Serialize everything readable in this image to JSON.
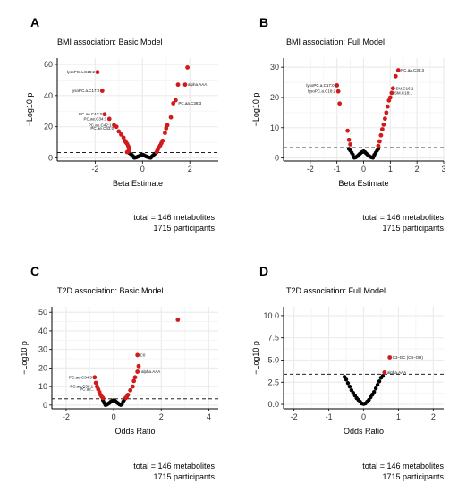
{
  "chart_data": [
    {
      "type": "scatter",
      "panel": "A",
      "title": "BMI association: Basic Model",
      "xlabel": "Beta Estimate",
      "ylabel": "−Log10 p",
      "xlim": [
        -3.6,
        3.2
      ],
      "ylim": [
        -2,
        64
      ],
      "xticks": [
        -2,
        0,
        2
      ],
      "yticks": [
        0,
        20,
        40,
        60
      ],
      "threshold_y": 3.4,
      "grid": true,
      "footnote": [
        "total = 146 metabolites",
        "1715 participants"
      ],
      "points_nonsig": [
        [
          -0.3,
          0.2
        ],
        [
          -0.25,
          0.5
        ],
        [
          -0.2,
          0.8
        ],
        [
          -0.15,
          1.1
        ],
        [
          -0.1,
          1.5
        ],
        [
          -0.05,
          1.9
        ],
        [
          0.0,
          2.1
        ],
        [
          0.05,
          1.8
        ],
        [
          0.1,
          1.4
        ],
        [
          0.15,
          1.0
        ],
        [
          0.2,
          0.7
        ],
        [
          0.25,
          0.4
        ],
        [
          0.3,
          0.2
        ],
        [
          0.35,
          0.1
        ],
        [
          -0.35,
          0.1
        ],
        [
          0.4,
          0.9
        ],
        [
          -0.4,
          1.2
        ],
        [
          0.45,
          1.6
        ],
        [
          -0.45,
          1.9
        ],
        [
          0.5,
          2.4
        ],
        [
          -0.5,
          2.6
        ],
        [
          0.55,
          2.9
        ],
        [
          -0.55,
          3.1
        ]
      ],
      "points_sig": [
        [
          -1.9,
          55
        ],
        [
          -1.7,
          43
        ],
        [
          -1.6,
          28
        ],
        [
          -1.4,
          25
        ],
        [
          -1.2,
          21
        ],
        [
          -1.1,
          20
        ],
        [
          -1.0,
          17
        ],
        [
          -0.9,
          15
        ],
        [
          -0.8,
          13
        ],
        [
          -0.75,
          11
        ],
        [
          -0.7,
          10
        ],
        [
          -0.65,
          9
        ],
        [
          -0.6,
          7.5
        ],
        [
          -0.58,
          6.5
        ],
        [
          -0.56,
          5.5
        ],
        [
          -0.57,
          4.6
        ],
        [
          -0.6,
          4.0
        ],
        [
          -0.65,
          3.7
        ],
        [
          0.6,
          3.7
        ],
        [
          0.62,
          4.5
        ],
        [
          0.65,
          5.5
        ],
        [
          0.7,
          6.8
        ],
        [
          0.75,
          8
        ],
        [
          0.8,
          9.5
        ],
        [
          0.85,
          11
        ],
        [
          0.95,
          16
        ],
        [
          1.0,
          19
        ],
        [
          1.05,
          21
        ],
        [
          1.2,
          26
        ],
        [
          1.3,
          35
        ],
        [
          1.4,
          37
        ],
        [
          1.5,
          47
        ],
        [
          1.8,
          47
        ],
        [
          1.9,
          58
        ]
      ],
      "labels": [
        {
          "x": -1.9,
          "y": 55,
          "text": "lysoPC.a.C18:2"
        },
        {
          "x": -1.7,
          "y": 43,
          "text": "lysoPC.a.C17:0"
        },
        {
          "x": -1.6,
          "y": 28,
          "text": "PC.ae.C42:3"
        },
        {
          "x": -1.4,
          "y": 25,
          "text": "PC.ae.C34:3"
        },
        {
          "x": -1.2,
          "y": 21,
          "text": "PC.ae.C42:1"
        },
        {
          "x": -1.1,
          "y": 19,
          "text": "PC.ae.C42:0"
        },
        {
          "x": 1.8,
          "y": 47,
          "text": "alpha.AAA"
        },
        {
          "x": 1.4,
          "y": 35,
          "text": "PC.aa.C38:3"
        }
      ]
    },
    {
      "type": "scatter",
      "panel": "B",
      "title": "BMI association: Full Model",
      "xlabel": "Beta Estimate",
      "ylabel": "−Log10 p",
      "xlim": [
        -3,
        3
      ],
      "ylim": [
        -1,
        33
      ],
      "xticks": [
        -2,
        -1,
        0,
        1,
        2,
        3
      ],
      "yticks": [
        0,
        10,
        20,
        30
      ],
      "threshold_y": 3.4,
      "grid": true,
      "footnote": [
        "total = 146 metabolites",
        "1715 participants"
      ],
      "points_nonsig": [
        [
          -0.3,
          0.2
        ],
        [
          -0.25,
          0.5
        ],
        [
          -0.2,
          0.9
        ],
        [
          -0.15,
          1.3
        ],
        [
          -0.1,
          1.7
        ],
        [
          -0.05,
          2.0
        ],
        [
          0.0,
          2.2
        ],
        [
          0.05,
          1.9
        ],
        [
          0.1,
          1.5
        ],
        [
          0.15,
          1.1
        ],
        [
          0.2,
          0.7
        ],
        [
          0.25,
          0.4
        ],
        [
          0.3,
          0.2
        ],
        [
          -0.35,
          0.1
        ],
        [
          0.35,
          0.1
        ],
        [
          -0.4,
          1.1
        ],
        [
          0.4,
          1.0
        ],
        [
          -0.45,
          1.8
        ],
        [
          0.45,
          1.7
        ],
        [
          -0.5,
          2.5
        ],
        [
          0.5,
          2.4
        ],
        [
          -0.55,
          3.0
        ],
        [
          0.55,
          3.0
        ]
      ],
      "points_sig": [
        [
          -1.0,
          24
        ],
        [
          -0.95,
          22
        ],
        [
          -0.9,
          18
        ],
        [
          -0.6,
          9
        ],
        [
          -0.55,
          6
        ],
        [
          -0.5,
          4.5
        ],
        [
          0.55,
          4.0
        ],
        [
          0.6,
          5.5
        ],
        [
          0.65,
          7.5
        ],
        [
          0.7,
          9.5
        ],
        [
          0.75,
          11
        ],
        [
          0.8,
          13
        ],
        [
          0.85,
          15
        ],
        [
          0.9,
          17
        ],
        [
          0.95,
          19
        ],
        [
          1.0,
          20
        ],
        [
          1.05,
          21.5
        ],
        [
          1.1,
          23
        ],
        [
          1.2,
          27
        ],
        [
          1.3,
          29
        ]
      ],
      "labels": [
        {
          "x": -1.0,
          "y": 24,
          "text": "lysoPC.a.C17:0"
        },
        {
          "x": -0.95,
          "y": 22,
          "text": "lysoPC.a.C18:2"
        },
        {
          "x": 1.3,
          "y": 29,
          "text": "PC.aa.C38:3"
        },
        {
          "x": 1.1,
          "y": 23,
          "text": "SM.C16:1"
        },
        {
          "x": 1.05,
          "y": 21.5,
          "text": "SM.C18:1"
        }
      ]
    },
    {
      "type": "scatter",
      "panel": "C",
      "title": "T2D association: Basic Model",
      "xlabel": "Odds Ratio",
      "ylabel": "−Log10 p",
      "xlim": [
        -2.6,
        4.4
      ],
      "ylim": [
        -2,
        53
      ],
      "xticks": [
        -2,
        0,
        2,
        4
      ],
      "yticks": [
        0,
        10,
        20,
        30,
        40,
        50
      ],
      "threshold_y": 3.4,
      "grid": true,
      "footnote": [
        "total = 146 metabolites",
        "1715 participants"
      ],
      "points_nonsig": [
        [
          -0.3,
          0.2
        ],
        [
          -0.25,
          0.6
        ],
        [
          -0.2,
          1.0
        ],
        [
          -0.15,
          1.5
        ],
        [
          -0.1,
          2.0
        ],
        [
          -0.05,
          2.4
        ],
        [
          0.0,
          2.6
        ],
        [
          0.05,
          2.3
        ],
        [
          0.1,
          1.8
        ],
        [
          0.15,
          1.3
        ],
        [
          0.2,
          0.8
        ],
        [
          0.25,
          0.4
        ],
        [
          0.3,
          0.1
        ],
        [
          -0.35,
          0.1
        ],
        [
          0.35,
          0.6
        ],
        [
          -0.4,
          1.2
        ],
        [
          0.4,
          1.9
        ],
        [
          -0.45,
          2.6
        ],
        [
          0.45,
          3.0
        ]
      ],
      "points_sig": [
        [
          -0.8,
          15
        ],
        [
          -0.75,
          12
        ],
        [
          -0.7,
          10
        ],
        [
          -0.65,
          8.5
        ],
        [
          -0.6,
          7
        ],
        [
          -0.55,
          5.5
        ],
        [
          -0.5,
          4.5
        ],
        [
          -0.45,
          3.8
        ],
        [
          0.5,
          3.8
        ],
        [
          0.55,
          4.5
        ],
        [
          0.6,
          5.5
        ],
        [
          0.7,
          8
        ],
        [
          0.8,
          10
        ],
        [
          0.85,
          13
        ],
        [
          0.9,
          15
        ],
        [
          1.0,
          18
        ],
        [
          1.05,
          21
        ],
        [
          1.0,
          27
        ],
        [
          2.7,
          46
        ]
      ],
      "labels": [
        {
          "x": 1.0,
          "y": 27,
          "text": "C0"
        },
        {
          "x": 1.05,
          "y": 18,
          "text": "alpha.AAA"
        },
        {
          "x": -0.8,
          "y": 15,
          "text": "PC.ae.C34:3"
        },
        {
          "x": -0.75,
          "y": 10,
          "text": "PC.ae.C30:1"
        },
        {
          "x": -0.7,
          "y": 8.5,
          "text": "PC.ae..."
        }
      ]
    },
    {
      "type": "scatter",
      "panel": "D",
      "title": "T2D association: Full Model",
      "xlabel": "Odds Ratio",
      "ylabel": "−Log10 p",
      "xlim": [
        -2.3,
        2.3
      ],
      "ylim": [
        -0.5,
        11
      ],
      "xticks": [
        -2,
        -1,
        0,
        1,
        2
      ],
      "yticks": [
        0.0,
        2.5,
        5.0,
        7.5,
        10.0
      ],
      "threshold_y": 3.4,
      "grid": true,
      "footnote": [
        "total = 146 metabolites",
        "1715 participants"
      ],
      "points_nonsig": [
        [
          -0.5,
          2.8
        ],
        [
          -0.45,
          2.4
        ],
        [
          -0.4,
          2.0
        ],
        [
          -0.35,
          1.6
        ],
        [
          -0.3,
          1.3
        ],
        [
          -0.25,
          1.0
        ],
        [
          -0.2,
          0.7
        ],
        [
          -0.15,
          0.5
        ],
        [
          -0.1,
          0.3
        ],
        [
          -0.05,
          0.1
        ],
        [
          0.0,
          0.05
        ],
        [
          0.05,
          0.1
        ],
        [
          0.1,
          0.3
        ],
        [
          0.15,
          0.5
        ],
        [
          0.2,
          0.8
        ],
        [
          0.25,
          1.1
        ],
        [
          0.3,
          1.4
        ],
        [
          0.35,
          1.8
        ],
        [
          0.4,
          2.2
        ],
        [
          0.45,
          2.6
        ],
        [
          0.5,
          3.0
        ],
        [
          0.55,
          3.2
        ],
        [
          -0.55,
          3.1
        ]
      ],
      "points_sig": [
        [
          0.6,
          3.6
        ],
        [
          0.75,
          5.3
        ]
      ],
      "labels": [
        {
          "x": 0.75,
          "y": 5.3,
          "text": "C3−DC (C4−OH)"
        },
        {
          "x": 0.6,
          "y": 3.6,
          "text": "alpha.AAA"
        }
      ]
    }
  ]
}
